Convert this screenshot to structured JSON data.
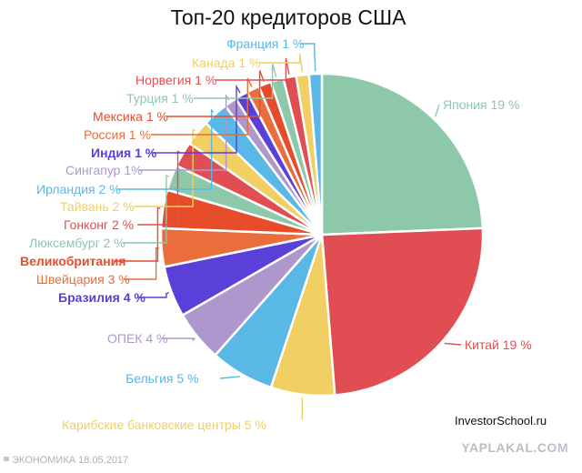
{
  "chart_data": {
    "type": "pie",
    "title": "Топ-20 кредиторов США",
    "slices": [
      {
        "label": "Япония 19 %",
        "value": 19,
        "color": "#8ec8aa"
      },
      {
        "label": "Китай 19 %",
        "value": 19,
        "color": "#e04e53"
      },
      {
        "label": "Карибские банковские центры 5 %",
        "value": 5,
        "color": "#f1cf62"
      },
      {
        "label": "Бельгия 5 %",
        "value": 5,
        "color": "#59b8e6"
      },
      {
        "label": "ОПЕК 4 %",
        "value": 4,
        "color": "#ad97cc"
      },
      {
        "label": "Бразилия 4 %",
        "value": 4,
        "color": "#5a3fd8"
      },
      {
        "label": "Швейцария 3 %",
        "value": 3,
        "color": "#ea6e3c"
      },
      {
        "label": "Великобритания",
        "value": 3,
        "color": "#e74c2a"
      },
      {
        "label": "Люксембург 2 %",
        "value": 2,
        "color": "#8ec8aa"
      },
      {
        "label": "Гонконг 2 %",
        "value": 2,
        "color": "#e04e53"
      },
      {
        "label": "Тайвань 2 %",
        "value": 2,
        "color": "#f1cf62"
      },
      {
        "label": "Ирландия 2 %",
        "value": 2,
        "color": "#59b8e6"
      },
      {
        "label": "Сингапур 1%",
        "value": 1,
        "color": "#ad97cc"
      },
      {
        "label": "Индия 1 %",
        "value": 1,
        "color": "#5a3fd8"
      },
      {
        "label": "Россия 1 %",
        "value": 1,
        "color": "#ea6e3c"
      },
      {
        "label": "Мексика 1 %",
        "value": 1,
        "color": "#e74c2a"
      },
      {
        "label": "Турция 1 %",
        "value": 1,
        "color": "#8ec8aa"
      },
      {
        "label": "Норвегия 1 %",
        "value": 1,
        "color": "#e04e53"
      },
      {
        "label": "Канада 1 %",
        "value": 1,
        "color": "#f1cf62"
      },
      {
        "label": "Франция 1 %",
        "value": 1,
        "color": "#59b8e6"
      }
    ]
  },
  "credit": "InvestorSchool.ru",
  "footer": {
    "left": "ЭКОНОМИКА  18.05.2017",
    "right": "YAPLAKAL.COM"
  }
}
